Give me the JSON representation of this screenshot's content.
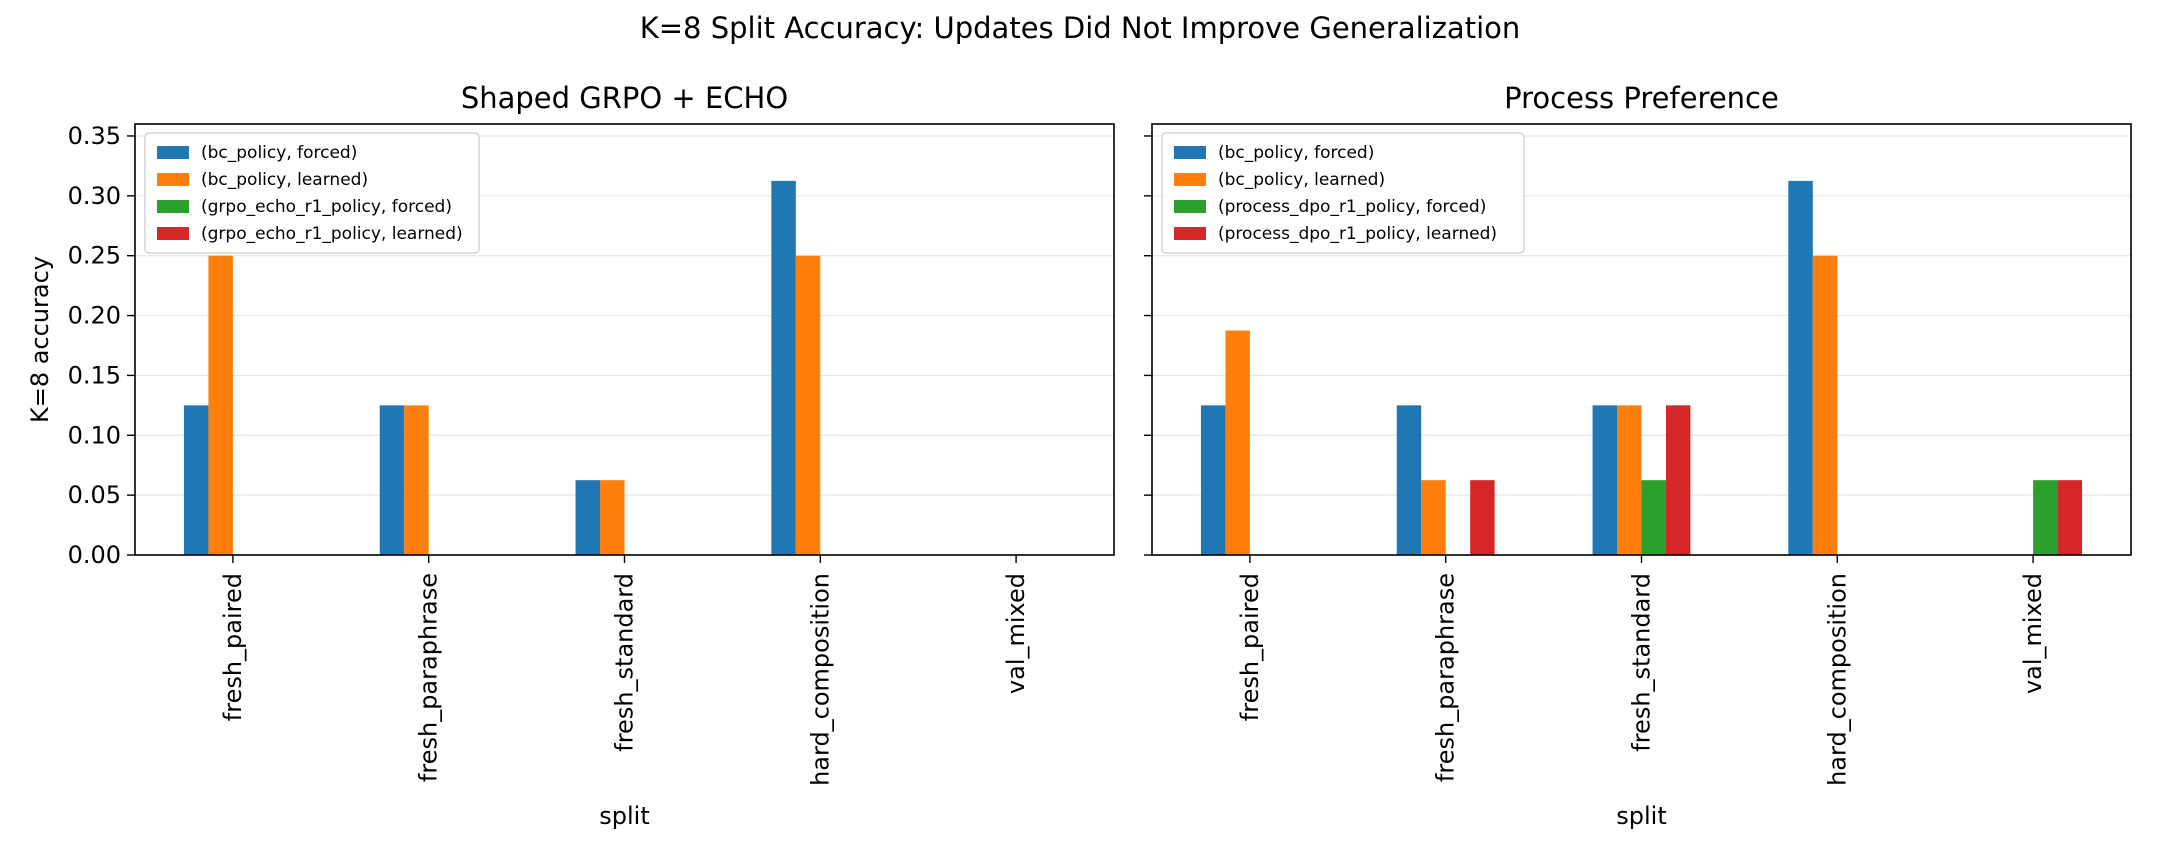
{
  "figure": {
    "suptitle": "K=8 Split Accuracy: Updates Did Not Improve Generalization"
  },
  "chart_data": [
    {
      "type": "bar",
      "title": "Shaped GRPO + ECHO",
      "xlabel": "split",
      "ylabel": "K=8 accuracy",
      "ylim": [
        0,
        0.36
      ],
      "yticks": [
        "0.00",
        "0.05",
        "0.10",
        "0.15",
        "0.20",
        "0.25",
        "0.30",
        "0.35"
      ],
      "grid": "y",
      "legend_position": "upper left",
      "categories": [
        "fresh_paired",
        "fresh_paraphrase",
        "fresh_standard",
        "hard_composition",
        "val_mixed"
      ],
      "series": [
        {
          "name": "(bc_policy, forced)",
          "color": "#1f77b4",
          "values": [
            0.125,
            0.125,
            0.0625,
            0.3125,
            0
          ]
        },
        {
          "name": "(bc_policy, learned)",
          "color": "#ff7f0e",
          "values": [
            0.25,
            0.125,
            0.0625,
            0.25,
            0
          ]
        },
        {
          "name": "(grpo_echo_r1_policy, forced)",
          "color": "#2ca02c",
          "values": [
            0,
            0,
            0,
            0,
            0
          ]
        },
        {
          "name": "(grpo_echo_r1_policy, learned)",
          "color": "#d62728",
          "values": [
            0,
            0,
            0,
            0,
            0
          ]
        }
      ]
    },
    {
      "type": "bar",
      "title": "Process Preference",
      "xlabel": "split",
      "ylabel": "",
      "ylim": [
        0,
        0.36
      ],
      "yticks": [
        "0.00",
        "0.05",
        "0.10",
        "0.15",
        "0.20",
        "0.25",
        "0.30",
        "0.35"
      ],
      "grid": "y",
      "legend_position": "upper left",
      "categories": [
        "fresh_paired",
        "fresh_paraphrase",
        "fresh_standard",
        "hard_composition",
        "val_mixed"
      ],
      "series": [
        {
          "name": "(bc_policy, forced)",
          "color": "#1f77b4",
          "values": [
            0.125,
            0.125,
            0.125,
            0.3125,
            0
          ]
        },
        {
          "name": "(bc_policy, learned)",
          "color": "#ff7f0e",
          "values": [
            0.1875,
            0.0625,
            0.125,
            0.25,
            0
          ]
        },
        {
          "name": "(process_dpo_r1_policy, forced)",
          "color": "#2ca02c",
          "values": [
            0,
            0,
            0.0625,
            0,
            0.0625
          ]
        },
        {
          "name": "(process_dpo_r1_policy, learned)",
          "color": "#d62728",
          "values": [
            0,
            0.0625,
            0.125,
            0,
            0.0625
          ]
        }
      ]
    }
  ]
}
